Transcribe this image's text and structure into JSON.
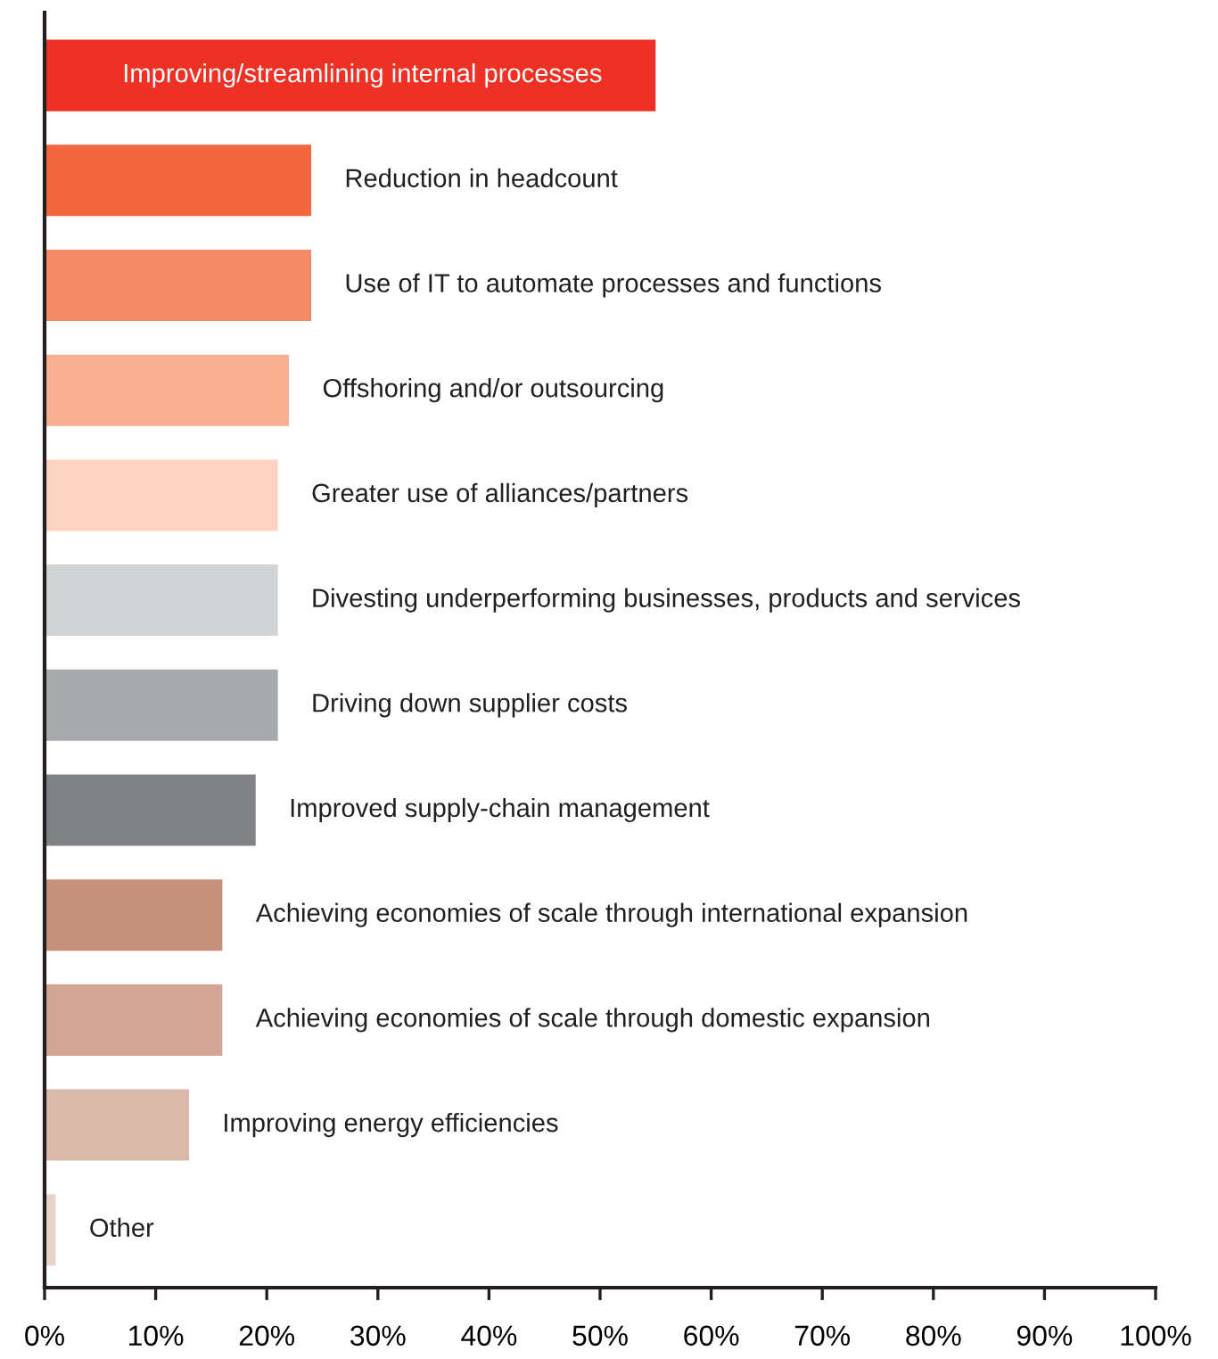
{
  "chart_data": {
    "type": "bar",
    "orientation": "horizontal",
    "categories": [
      "Improving/streamlining internal processes",
      "Reduction in headcount",
      "Use of IT to automate processes and functions",
      "Offshoring and/or outsourcing",
      "Greater use of alliances/partners",
      "Divesting underperforming businesses, products and services",
      "Driving down supplier costs",
      "Improved supply-chain management",
      "Achieving economies of scale through international expansion",
      "Achieving economies of scale through domestic expansion",
      "Improving energy efficiencies",
      "Other"
    ],
    "values": [
      55,
      24,
      24,
      22,
      21,
      21,
      21,
      19,
      16,
      16,
      13,
      1
    ],
    "colors": [
      "#ee3124",
      "#f26640",
      "#f58a66",
      "#f8ae90",
      "#fcd3c1",
      "#d1d3d4",
      "#a7a9ac",
      "#808285",
      "#c5917c",
      "#d0a593",
      "#dbb9a9",
      "#e8d3c9"
    ],
    "xlim": [
      0,
      100
    ],
    "xticks": [
      {
        "value": 0,
        "label": "0%"
      },
      {
        "value": 10,
        "label": "10%"
      },
      {
        "value": 20,
        "label": "20%"
      },
      {
        "value": 30,
        "label": "30%"
      },
      {
        "value": 40,
        "label": "40%"
      },
      {
        "value": 50,
        "label": "50%"
      },
      {
        "value": 60,
        "label": "60%"
      },
      {
        "value": 70,
        "label": "70%"
      },
      {
        "value": 80,
        "label": "80%"
      },
      {
        "value": 90,
        "label": "90%"
      },
      {
        "value": 100,
        "label": "100%"
      }
    ],
    "grid": false,
    "legend": false
  }
}
